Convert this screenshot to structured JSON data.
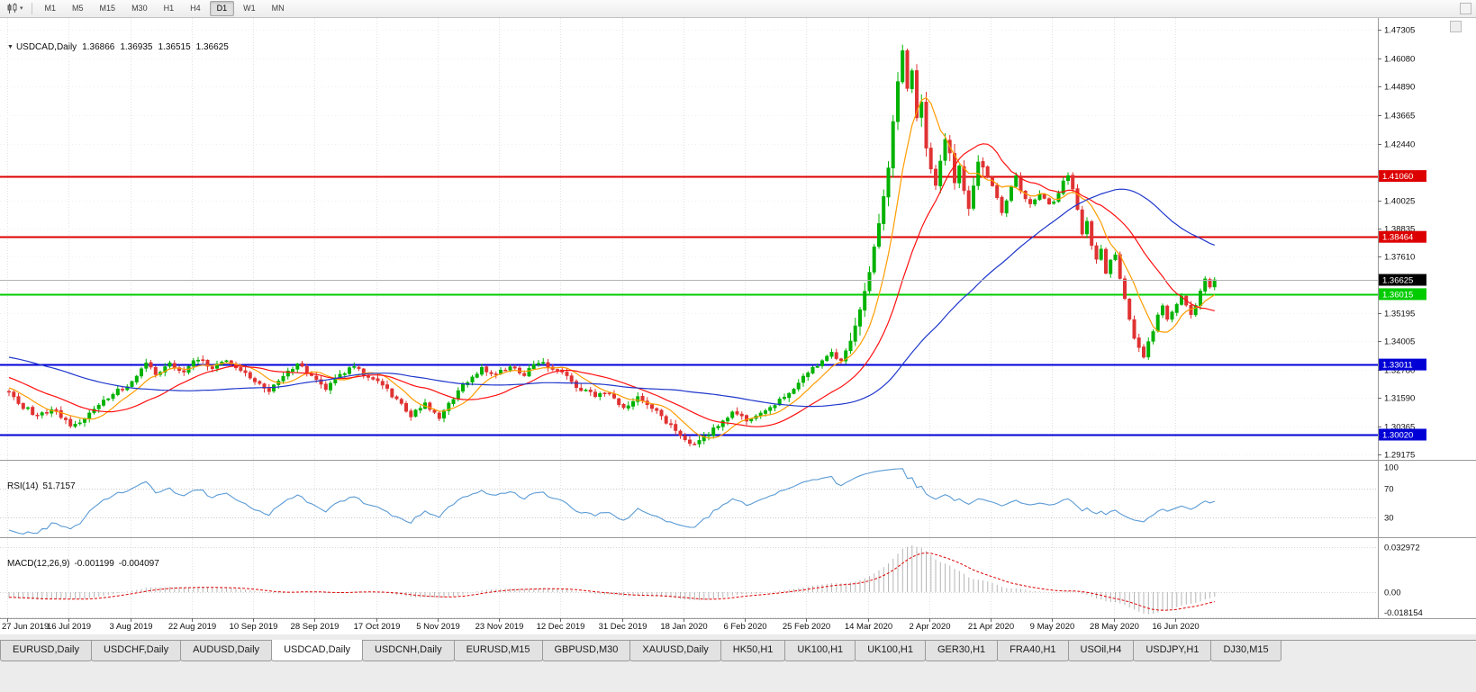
{
  "icons": {
    "title_caret": "▼",
    "toolbar_caret": "▾"
  },
  "toolbar": {
    "timeframes": [
      "M1",
      "M5",
      "M15",
      "M30",
      "H1",
      "H4",
      "D1",
      "W1",
      "MN"
    ],
    "active": "D1"
  },
  "chart": {
    "title": {
      "symbol_period": "USDCAD,Daily",
      "open": "1.36866",
      "high": "1.36935",
      "low": "1.36515",
      "close": "1.36625"
    }
  },
  "chart_data": {
    "type": "candlestick",
    "symbol": "USDCAD",
    "timeframe": "Daily",
    "candle_count": 256,
    "candles_per_label": 13,
    "up_color": "#00b200",
    "down_color": "#e03232",
    "price_axis_ticks": [
      "1.47305",
      "1.46080",
      "1.44890",
      "1.43665",
      "1.42440",
      "1.40025",
      "1.38835",
      "1.37610",
      "1.35195",
      "1.34005",
      "1.32780",
      "1.31590",
      "1.30365",
      "1.29175"
    ],
    "hlines": [
      {
        "value": 1.4106,
        "label": "1.41060",
        "color": "#dd0000",
        "width": 2
      },
      {
        "value": 1.38464,
        "label": "1.38464",
        "color": "#dd0000",
        "width": 2
      },
      {
        "value": 1.36015,
        "label": "1.36015",
        "color": "#00cc00",
        "width": 2
      },
      {
        "value": 1.33011,
        "label": "1.33011",
        "color": "#0000d6",
        "width": 2
      },
      {
        "value": 1.3002,
        "label": "1.30020",
        "color": "#0000d6",
        "width": 2
      }
    ],
    "current_price": {
      "value": 1.36625,
      "label": "1.36625",
      "box_color": "#000000",
      "line_color": "#b4b4b4"
    },
    "date_labels": [
      "27 Jun 2019",
      "16 Jul 2019",
      "3 Aug 2019",
      "22 Aug 2019",
      "10 Sep 2019",
      "28 Sep 2019",
      "17 Oct 2019",
      "5 Nov 2019",
      "23 Nov 2019",
      "12 Dec 2019",
      "31 Dec 2019",
      "18 Jan 2020",
      "6 Feb 2020",
      "25 Feb 2020",
      "14 Mar 2020",
      "2 Apr 2020",
      "21 Apr 2020",
      "9 May 2020",
      "28 May 2020",
      "16 Jun 2020"
    ],
    "ma": [
      {
        "period": 8,
        "color": "#ff9c00"
      },
      {
        "period": 21,
        "color": "#ff1010"
      },
      {
        "period": 55,
        "color": "#2038cc"
      }
    ],
    "rsi": {
      "label": "RSI(14)",
      "value": "51.7157",
      "period": 14,
      "color": "#5b9bd5",
      "levels": [
        {
          "v": 100,
          "label": "100"
        },
        {
          "v": 70,
          "label": "70"
        },
        {
          "v": 30,
          "label": "30"
        }
      ]
    },
    "macd": {
      "label": "MACD(12,26,9)",
      "value_main": "-0.001199",
      "value_signal": "-0.004097",
      "fast": 12,
      "slow": 26,
      "signal": 9,
      "hist_color": "#b6b6b6",
      "signal_color": "#e00000",
      "scale": {
        "max": {
          "v": 0.032972,
          "label": "0.032972"
        },
        "zero": {
          "v": 0,
          "label": "0.00"
        },
        "min": {
          "v": -0.018154,
          "label": "-0.018154"
        }
      }
    },
    "price_anchors": [
      [
        -60,
        1.335
      ],
      [
        -40,
        1.342
      ],
      [
        -25,
        1.336
      ],
      [
        -12,
        1.326
      ],
      [
        0,
        1.318
      ],
      [
        3,
        1.312
      ],
      [
        6,
        1.3085
      ],
      [
        9,
        1.311
      ],
      [
        13,
        1.3045
      ],
      [
        16,
        1.307
      ],
      [
        19,
        1.3125
      ],
      [
        22,
        1.3175
      ],
      [
        26,
        1.323
      ],
      [
        29,
        1.3315
      ],
      [
        31,
        1.326
      ],
      [
        34,
        1.3305
      ],
      [
        37,
        1.327
      ],
      [
        40,
        1.333
      ],
      [
        43,
        1.329
      ],
      [
        46,
        1.332
      ],
      [
        49,
        1.328
      ],
      [
        52,
        1.3235
      ],
      [
        55,
        1.3185
      ],
      [
        58,
        1.326
      ],
      [
        61,
        1.3305
      ],
      [
        64,
        1.325
      ],
      [
        67,
        1.32
      ],
      [
        70,
        1.3255
      ],
      [
        73,
        1.329
      ],
      [
        76,
        1.325
      ],
      [
        79,
        1.321
      ],
      [
        82,
        1.315
      ],
      [
        85,
        1.3085
      ],
      [
        88,
        1.313
      ],
      [
        91,
        1.3075
      ],
      [
        94,
        1.316
      ],
      [
        97,
        1.323
      ],
      [
        100,
        1.329
      ],
      [
        103,
        1.3255
      ],
      [
        106,
        1.33
      ],
      [
        109,
        1.326
      ],
      [
        112,
        1.331
      ],
      [
        115,
        1.329
      ],
      [
        118,
        1.3245
      ],
      [
        121,
        1.3195
      ],
      [
        124,
        1.3165
      ],
      [
        127,
        1.3175
      ],
      [
        130,
        1.311
      ],
      [
        133,
        1.316
      ],
      [
        136,
        1.312
      ],
      [
        139,
        1.306
      ],
      [
        142,
        1.2995
      ],
      [
        144,
        1.2958
      ],
      [
        147,
        1.299
      ],
      [
        150,
        1.304
      ],
      [
        153,
        1.31
      ],
      [
        156,
        1.3065
      ],
      [
        159,
        1.3085
      ],
      [
        162,
        1.313
      ],
      [
        165,
        1.318
      ],
      [
        168,
        1.3245
      ],
      [
        171,
        1.33
      ],
      [
        174,
        1.335
      ],
      [
        176,
        1.331
      ],
      [
        178,
        1.3405
      ],
      [
        180,
        1.353
      ],
      [
        182,
        1.369
      ],
      [
        184,
        1.39
      ],
      [
        186,
        1.415
      ],
      [
        187,
        1.433
      ],
      [
        188,
        1.45
      ],
      [
        189,
        1.464
      ],
      [
        190,
        1.448
      ],
      [
        191,
        1.455
      ],
      [
        192,
        1.435
      ],
      [
        193,
        1.442
      ],
      [
        194,
        1.423
      ],
      [
        195,
        1.414
      ],
      [
        196,
        1.406
      ],
      [
        197,
        1.417
      ],
      [
        198,
        1.427
      ],
      [
        199,
        1.42
      ],
      [
        200,
        1.408
      ],
      [
        201,
        1.415
      ],
      [
        202,
        1.404
      ],
      [
        203,
        1.397
      ],
      [
        204,
        1.406
      ],
      [
        205,
        1.417
      ],
      [
        206,
        1.414
      ],
      [
        207,
        1.409
      ],
      [
        208,
        1.407
      ],
      [
        209,
        1.402
      ],
      [
        210,
        1.395
      ],
      [
        211,
        1.401
      ],
      [
        212,
        1.407
      ],
      [
        213,
        1.41
      ],
      [
        214,
        1.405
      ],
      [
        216,
        1.3985
      ],
      [
        218,
        1.4035
      ],
      [
        220,
        1.398
      ],
      [
        221,
        1.3995
      ],
      [
        223,
        1.408
      ],
      [
        224,
        1.4105
      ],
      [
        225,
        1.4045
      ],
      [
        226,
        1.3955
      ],
      [
        227,
        1.3865
      ],
      [
        228,
        1.3905
      ],
      [
        229,
        1.3815
      ],
      [
        230,
        1.3755
      ],
      [
        231,
        1.3785
      ],
      [
        232,
        1.3685
      ],
      [
        233,
        1.3745
      ],
      [
        234,
        1.3775
      ],
      [
        235,
        1.3675
      ],
      [
        236,
        1.3575
      ],
      [
        237,
        1.3485
      ],
      [
        238,
        1.3415
      ],
      [
        239,
        1.3375
      ],
      [
        240,
        1.3335
      ],
      [
        241,
        1.3395
      ],
      [
        242,
        1.3445
      ],
      [
        243,
        1.3505
      ],
      [
        244,
        1.355
      ],
      [
        245,
        1.3485
      ],
      [
        246,
        1.353
      ],
      [
        247,
        1.3555
      ],
      [
        248,
        1.359
      ],
      [
        249,
        1.3545
      ],
      [
        250,
        1.3505
      ],
      [
        251,
        1.356
      ],
      [
        252,
        1.3615
      ],
      [
        253,
        1.3665
      ],
      [
        254,
        1.364
      ],
      [
        255,
        1.36625
      ]
    ]
  },
  "tabs": [
    "EURUSD,Daily",
    "USDCHF,Daily",
    "AUDUSD,Daily",
    "USDCAD,Daily",
    "USDCNH,Daily",
    "EURUSD,M15",
    "GBPUSD,M30",
    "XAUUSD,Daily",
    "HK50,H1",
    "UK100,H1",
    "UK100,H1",
    "GER30,H1",
    "FRA40,H1",
    "USOil,H4",
    "USDJPY,H1",
    "DJ30,M15"
  ],
  "active_tab_index": 3
}
